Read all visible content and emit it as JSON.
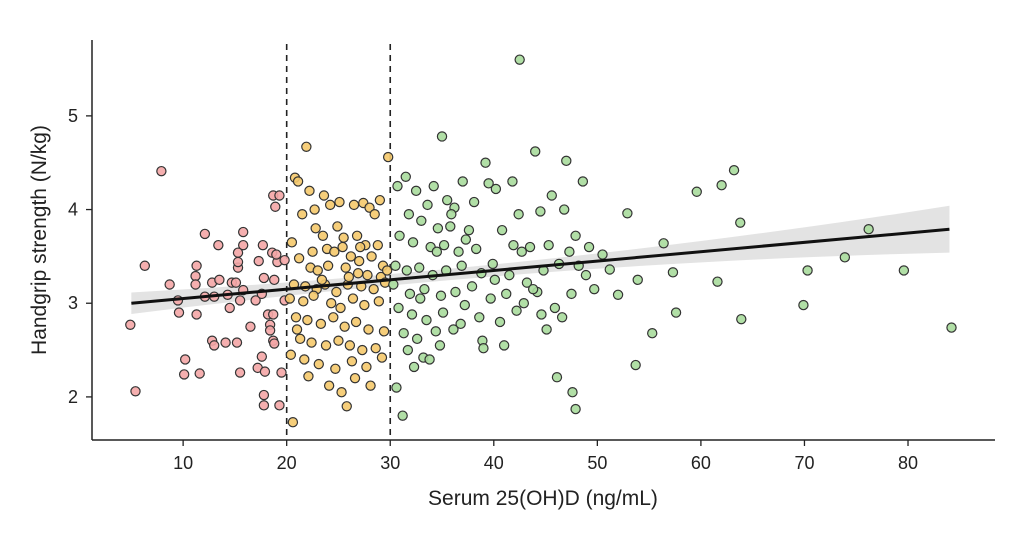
{
  "chart_data": {
    "type": "scatter",
    "title": "",
    "xlabel": "Serum 25(OH)D (ng/mL)",
    "ylabel": "Handgrip strength (N/kg)",
    "xlim": [
      1.2,
      88.4
    ],
    "ylim": [
      1.54,
      5.81
    ],
    "xticks": [
      10,
      20,
      30,
      40,
      50,
      60,
      70,
      80
    ],
    "yticks": [
      2,
      3,
      4,
      5
    ],
    "grid": false,
    "reference_lines_x": [
      20,
      30
    ],
    "regression": {
      "x": [
        5,
        84
      ],
      "y": [
        3.0,
        3.79
      ],
      "ci_halfwidth": [
        0.08,
        0.25
      ]
    },
    "colors": {
      "below_20": "#f4a6a6",
      "20_to_30": "#f5c96b",
      "above_30": "#a9dc9c",
      "stroke": "#333333",
      "line": "#111111",
      "band": "#d9d9d9"
    },
    "series": [
      {
        "group": "below_20",
        "points": [
          [
            7.9,
            4.41
          ],
          [
            6.3,
            3.4
          ],
          [
            4.9,
            2.77
          ],
          [
            5.4,
            2.06
          ],
          [
            8.7,
            3.2
          ],
          [
            9.5,
            3.03
          ],
          [
            9.6,
            2.9
          ],
          [
            10.2,
            2.4
          ],
          [
            10.1,
            2.24
          ],
          [
            11.3,
            2.88
          ],
          [
            11.6,
            2.25
          ],
          [
            11.3,
            3.4
          ],
          [
            11.2,
            3.29
          ],
          [
            11.2,
            3.2
          ],
          [
            12.1,
            3.74
          ],
          [
            12.1,
            3.07
          ],
          [
            12.8,
            3.22
          ],
          [
            13,
            3.07
          ],
          [
            12.8,
            2.6
          ],
          [
            13,
            2.55
          ],
          [
            14.1,
            2.58
          ],
          [
            13.4,
            3.62
          ],
          [
            13.5,
            3.25
          ],
          [
            14.7,
            3.22
          ],
          [
            14.3,
            3.09
          ],
          [
            15.3,
            3.38
          ],
          [
            15.2,
            2.58
          ],
          [
            15.5,
            2.26
          ],
          [
            15.8,
            3.62
          ],
          [
            15.8,
            3.76
          ],
          [
            15.3,
            3.54
          ],
          [
            15.1,
            3.22
          ],
          [
            15.3,
            3.44
          ],
          [
            15.8,
            3.14
          ],
          [
            15.5,
            3.03
          ],
          [
            17,
            3.03
          ],
          [
            17.6,
            3.1
          ],
          [
            17.8,
            3.27
          ],
          [
            17.7,
            3.62
          ],
          [
            17.6,
            2.43
          ],
          [
            17.2,
            2.31
          ],
          [
            17.9,
            2.27
          ],
          [
            18.6,
            3.54
          ],
          [
            18.2,
            2.88
          ],
          [
            18.4,
            2.77
          ],
          [
            18.7,
            2.6
          ],
          [
            18.8,
            2.57
          ],
          [
            18.8,
            3.25
          ],
          [
            19.1,
            3.44
          ],
          [
            19,
            3.52
          ],
          [
            18.9,
            4.03
          ],
          [
            18.7,
            4.15
          ],
          [
            19.3,
            4.15
          ],
          [
            18.7,
            2.88
          ],
          [
            19.5,
            2.26
          ],
          [
            17.8,
            2.02
          ],
          [
            17.8,
            1.91
          ],
          [
            19.3,
            1.91
          ],
          [
            18.4,
            2.71
          ],
          [
            19.8,
            3.03
          ],
          [
            19.8,
            3.46
          ],
          [
            16.5,
            2.75
          ],
          [
            14.5,
            2.95
          ],
          [
            17.3,
            3.45
          ]
        ]
      },
      {
        "group": "20_to_30",
        "points": [
          [
            21.9,
            4.67
          ],
          [
            29.8,
            4.56
          ],
          [
            20.6,
            1.73
          ],
          [
            25.8,
            1.9
          ],
          [
            20.8,
            4.34
          ],
          [
            21.1,
            4.3
          ],
          [
            22.2,
            4.2
          ],
          [
            23.6,
            4.15
          ],
          [
            24.2,
            4.05
          ],
          [
            25.1,
            4.08
          ],
          [
            26.5,
            4.05
          ],
          [
            27.4,
            4.07
          ],
          [
            28,
            4.02
          ],
          [
            29,
            4.1
          ],
          [
            28.5,
            3.95
          ],
          [
            21.5,
            3.95
          ],
          [
            22.8,
            3.8
          ],
          [
            23.5,
            3.72
          ],
          [
            25.5,
            3.7
          ],
          [
            26.8,
            3.72
          ],
          [
            27.6,
            3.62
          ],
          [
            28.8,
            3.62
          ],
          [
            20.5,
            3.65
          ],
          [
            22.5,
            3.55
          ],
          [
            23.9,
            3.58
          ],
          [
            24.6,
            3.55
          ],
          [
            25.4,
            3.6
          ],
          [
            26.2,
            3.5
          ],
          [
            27,
            3.45
          ],
          [
            28.2,
            3.5
          ],
          [
            29.3,
            3.4
          ],
          [
            21.2,
            3.48
          ],
          [
            22.3,
            3.38
          ],
          [
            23,
            3.35
          ],
          [
            24,
            3.4
          ],
          [
            25.7,
            3.38
          ],
          [
            26.9,
            3.32
          ],
          [
            27.8,
            3.3
          ],
          [
            29.1,
            3.28
          ],
          [
            20.7,
            3.2
          ],
          [
            21.8,
            3.18
          ],
          [
            22.9,
            3.15
          ],
          [
            23.7,
            3.2
          ],
          [
            24.8,
            3.12
          ],
          [
            25.9,
            3.2
          ],
          [
            27.2,
            3.18
          ],
          [
            28.4,
            3.15
          ],
          [
            29.5,
            3.22
          ],
          [
            20.3,
            3.05
          ],
          [
            21.6,
            3.02
          ],
          [
            22.6,
            3.08
          ],
          [
            24.3,
            3.0
          ],
          [
            25.2,
            2.95
          ],
          [
            26.4,
            3.05
          ],
          [
            27.5,
            2.98
          ],
          [
            28.9,
            3.02
          ],
          [
            20.9,
            2.85
          ],
          [
            22,
            2.82
          ],
          [
            23.3,
            2.78
          ],
          [
            24.5,
            2.85
          ],
          [
            25.6,
            2.75
          ],
          [
            26.7,
            2.8
          ],
          [
            27.9,
            2.72
          ],
          [
            29.4,
            2.7
          ],
          [
            21.3,
            2.62
          ],
          [
            22.4,
            2.58
          ],
          [
            23.8,
            2.55
          ],
          [
            25,
            2.6
          ],
          [
            26.1,
            2.55
          ],
          [
            27.3,
            2.5
          ],
          [
            28.6,
            2.52
          ],
          [
            20.4,
            2.45
          ],
          [
            21.7,
            2.4
          ],
          [
            23.1,
            2.35
          ],
          [
            24.7,
            2.3
          ],
          [
            26.3,
            2.38
          ],
          [
            27.7,
            2.32
          ],
          [
            29.2,
            2.42
          ],
          [
            22.1,
            2.22
          ],
          [
            24.1,
            2.12
          ],
          [
            26.6,
            2.2
          ],
          [
            28.1,
            2.12
          ],
          [
            25.3,
            2.05
          ],
          [
            23.4,
            3.25
          ],
          [
            26,
            3.28
          ],
          [
            27.1,
            3.6
          ],
          [
            24.9,
            3.82
          ],
          [
            22.7,
            4.0
          ],
          [
            29.7,
            3.35
          ],
          [
            21,
            2.72
          ]
        ]
      },
      {
        "group": "above_30",
        "points": [
          [
            42.5,
            5.6
          ],
          [
            35,
            4.78
          ],
          [
            44,
            4.62
          ],
          [
            39.2,
            4.5
          ],
          [
            47,
            4.52
          ],
          [
            48.6,
            4.3
          ],
          [
            59.6,
            4.19
          ],
          [
            62,
            4.26
          ],
          [
            63.2,
            4.42
          ],
          [
            76.2,
            3.79
          ],
          [
            84.2,
            2.74
          ],
          [
            79.6,
            3.35
          ],
          [
            73.9,
            3.49
          ],
          [
            69.9,
            2.98
          ],
          [
            70.3,
            3.35
          ],
          [
            63.8,
            3.86
          ],
          [
            63.9,
            2.83
          ],
          [
            61.6,
            3.23
          ],
          [
            57.6,
            2.9
          ],
          [
            57.3,
            3.33
          ],
          [
            56.4,
            3.64
          ],
          [
            55.3,
            2.68
          ],
          [
            53.7,
            2.34
          ],
          [
            53.9,
            3.25
          ],
          [
            52.9,
            3.96
          ],
          [
            52,
            3.09
          ],
          [
            51.2,
            3.36
          ],
          [
            46.1,
            2.21
          ],
          [
            47.6,
            2.05
          ],
          [
            47.9,
            1.87
          ],
          [
            31.2,
            1.8
          ],
          [
            31.5,
            4.35
          ],
          [
            30.7,
            4.25
          ],
          [
            32.5,
            4.2
          ],
          [
            34.2,
            4.25
          ],
          [
            33.6,
            4.05
          ],
          [
            35.5,
            4.1
          ],
          [
            37,
            4.3
          ],
          [
            36.2,
            4.02
          ],
          [
            39.5,
            4.28
          ],
          [
            41.8,
            4.3
          ],
          [
            40.2,
            4.22
          ],
          [
            45.6,
            4.15
          ],
          [
            46.8,
            4.0
          ],
          [
            44.5,
            3.98
          ],
          [
            31.8,
            3.95
          ],
          [
            33,
            3.88
          ],
          [
            34.6,
            3.8
          ],
          [
            35.8,
            3.82
          ],
          [
            37.6,
            3.78
          ],
          [
            30.9,
            3.72
          ],
          [
            32.2,
            3.65
          ],
          [
            33.9,
            3.6
          ],
          [
            35.2,
            3.62
          ],
          [
            36.6,
            3.55
          ],
          [
            38.3,
            3.58
          ],
          [
            40.8,
            3.78
          ],
          [
            42.7,
            3.55
          ],
          [
            43.5,
            3.6
          ],
          [
            45.3,
            3.62
          ],
          [
            47.3,
            3.55
          ],
          [
            49.2,
            3.6
          ],
          [
            50.5,
            3.52
          ],
          [
            30.5,
            3.4
          ],
          [
            31.6,
            3.35
          ],
          [
            32.8,
            3.38
          ],
          [
            34.1,
            3.3
          ],
          [
            35.4,
            3.35
          ],
          [
            36.9,
            3.4
          ],
          [
            38.8,
            3.32
          ],
          [
            40.1,
            3.25
          ],
          [
            41.5,
            3.3
          ],
          [
            43.2,
            3.22
          ],
          [
            44.8,
            3.35
          ],
          [
            46.3,
            3.42
          ],
          [
            48.2,
            3.4
          ],
          [
            30.3,
            3.2
          ],
          [
            31.9,
            3.1
          ],
          [
            33.3,
            3.15
          ],
          [
            34.9,
            3.08
          ],
          [
            36.3,
            3.12
          ],
          [
            37.9,
            3.18
          ],
          [
            39.7,
            3.05
          ],
          [
            41.2,
            3.1
          ],
          [
            42.9,
            3.0
          ],
          [
            44.2,
            3.12
          ],
          [
            45.9,
            2.95
          ],
          [
            47.5,
            3.1
          ],
          [
            49.7,
            3.15
          ],
          [
            30.8,
            2.95
          ],
          [
            32.1,
            2.88
          ],
          [
            33.5,
            2.82
          ],
          [
            35.1,
            2.9
          ],
          [
            36.8,
            2.78
          ],
          [
            38.6,
            2.85
          ],
          [
            40.6,
            2.8
          ],
          [
            42.2,
            2.92
          ],
          [
            44.6,
            2.88
          ],
          [
            46.6,
            2.85
          ],
          [
            31.3,
            2.68
          ],
          [
            32.6,
            2.62
          ],
          [
            34.4,
            2.7
          ],
          [
            36.1,
            2.72
          ],
          [
            38.9,
            2.6
          ],
          [
            39,
            2.52
          ],
          [
            41,
            2.55
          ],
          [
            31.7,
            2.5
          ],
          [
            33.2,
            2.42
          ],
          [
            34.8,
            2.55
          ],
          [
            32.3,
            2.32
          ],
          [
            33.8,
            2.4
          ],
          [
            30.6,
            2.1
          ],
          [
            37.3,
            3.68
          ],
          [
            39.9,
            3.42
          ],
          [
            41.9,
            3.62
          ],
          [
            43.8,
            3.15
          ],
          [
            45.1,
            2.72
          ],
          [
            48.9,
            3.3
          ],
          [
            35.9,
            3.95
          ],
          [
            38.1,
            4.08
          ],
          [
            42.4,
            3.95
          ],
          [
            47.9,
            3.72
          ],
          [
            34.5,
            3.55
          ],
          [
            32.9,
            3.05
          ],
          [
            37.2,
            2.98
          ]
        ]
      }
    ]
  }
}
